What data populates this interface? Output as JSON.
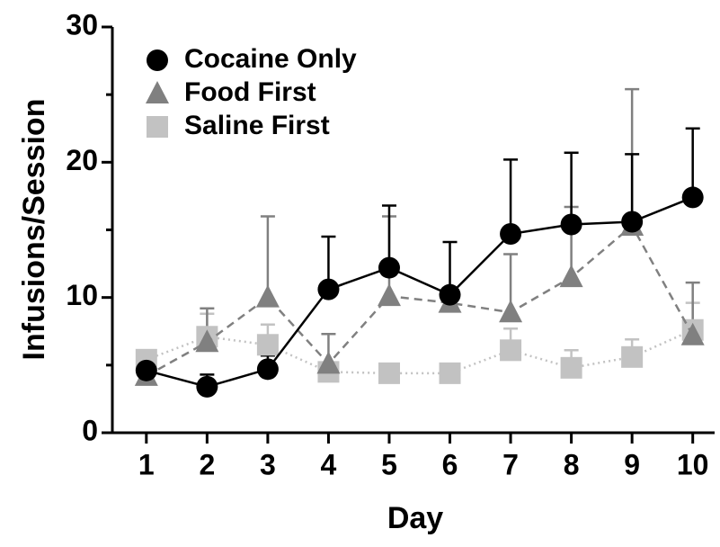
{
  "chart_data": {
    "type": "line",
    "x_label": "Day",
    "y_label": "Infusions/Session",
    "x": [
      1,
      2,
      3,
      4,
      5,
      6,
      7,
      8,
      9,
      10
    ],
    "xlim": [
      0.44,
      10.36
    ],
    "xticks": [
      1,
      2,
      3,
      4,
      5,
      6,
      7,
      8,
      9,
      10
    ],
    "ylim": [
      0,
      30
    ],
    "yticks": [
      0,
      10,
      20,
      30
    ],
    "yminor_ticks": [
      5,
      15,
      25
    ],
    "series": [
      {
        "name": "Saline First",
        "color": "#c2c2c2",
        "marker": "square",
        "dash": "2,4",
        "values": [
          5.4,
          7.1,
          6.5,
          4.5,
          4.4,
          4.4,
          6.1,
          4.8,
          5.6,
          7.6
        ],
        "errors": [
          0.4,
          1.7,
          1.5,
          0.3,
          0.3,
          0.7,
          1.6,
          1.3,
          1.3,
          2.0
        ]
      },
      {
        "name": "Food First",
        "color": "#808080",
        "marker": "triangle",
        "dash": "9,6",
        "values": [
          4.2,
          6.7,
          10.0,
          5.1,
          10.1,
          9.6,
          8.9,
          11.5,
          15.3,
          7.2
        ],
        "errors": [
          0.5,
          2.5,
          6.0,
          2.2,
          5.9,
          0.6,
          4.3,
          5.2,
          10.1,
          3.9
        ]
      },
      {
        "name": "Cocaine Only",
        "color": "#000000",
        "marker": "circle",
        "dash": "none",
        "values": [
          4.6,
          3.4,
          4.7,
          10.6,
          12.2,
          10.2,
          14.7,
          15.4,
          15.6,
          17.4
        ],
        "errors": [
          1.0,
          0.9,
          1.0,
          3.9,
          4.6,
          3.9,
          5.5,
          5.3,
          5.0,
          5.1
        ]
      }
    ],
    "legend_order": [
      2,
      1,
      0
    ]
  }
}
